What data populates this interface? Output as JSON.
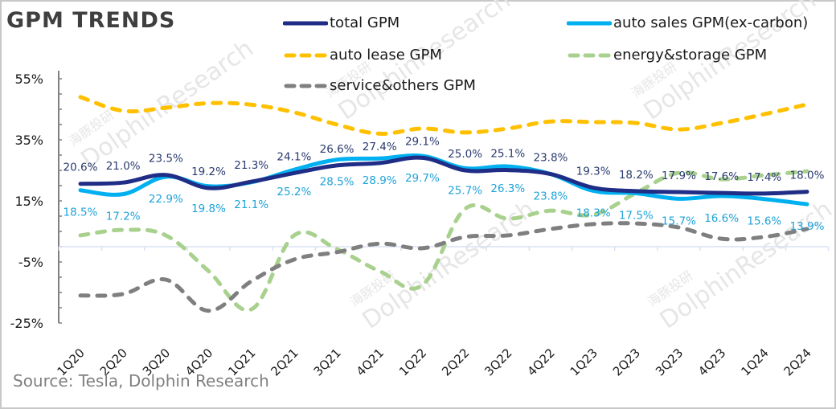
{
  "title": "GPM TRENDS",
  "source": "Source: Tesla,  Dolphin Research",
  "watermark": {
    "en": "DolphinResearch",
    "cn": "海豚投研"
  },
  "chart_data": {
    "type": "line",
    "title": "GPM TRENDS",
    "xlabel": "",
    "ylabel": "",
    "ylim": [
      -25,
      55
    ],
    "yticks": [
      55,
      35,
      15,
      -5,
      -25
    ],
    "ytick_labels": [
      "55%",
      "35%",
      "15%",
      "-5%",
      "-25%"
    ],
    "grid": false,
    "legend_position": "top",
    "categories": [
      "1Q20",
      "2Q20",
      "3Q20",
      "4Q20",
      "1Q21",
      "2Q21",
      "3Q21",
      "4Q21",
      "1Q22",
      "2Q22",
      "3Q22",
      "4Q22",
      "1Q23",
      "2Q23",
      "3Q23",
      "4Q23",
      "1Q24",
      "2Q24"
    ],
    "series": [
      {
        "name": "total GPM",
        "color": "#1f2d86",
        "style": "solid",
        "label_position": "above",
        "label_color": "#2a3a6e",
        "values": [
          20.6,
          21.0,
          23.5,
          19.2,
          21.3,
          24.1,
          26.6,
          27.4,
          29.1,
          25.0,
          25.1,
          23.8,
          19.3,
          18.2,
          17.9,
          17.6,
          17.4,
          18.0
        ],
        "labels": [
          "20.6%",
          "21.0%",
          "23.5%",
          "19.2%",
          "21.3%",
          "24.1%",
          "26.6%",
          "27.4%",
          "29.1%",
          "25.0%",
          "25.1%",
          "23.8%",
          "19.3%",
          "18.2%",
          "17.9%",
          "17.6%",
          "17.4%",
          "18.0%"
        ]
      },
      {
        "name": "auto sales GPM(ex-carbon)",
        "color": "#00b0f0",
        "style": "solid",
        "label_position": "below",
        "label_color": "#1fa3d8",
        "values": [
          18.5,
          17.2,
          22.9,
          19.8,
          21.1,
          25.2,
          28.5,
          28.9,
          29.7,
          25.7,
          26.3,
          23.8,
          18.3,
          17.5,
          15.7,
          16.6,
          15.6,
          13.9
        ],
        "labels": [
          "18.5%",
          "17.2%",
          "22.9%",
          "19.8%",
          "21.1%",
          "25.2%",
          "28.5%",
          "28.9%",
          "29.7%",
          "25.7%",
          "26.3%",
          "23.8%",
          "18.3%",
          "17.5%",
          "15.7%",
          "16.6%",
          "15.6%",
          "13.9%"
        ]
      },
      {
        "name": "auto lease GPM",
        "color": "#ffc000",
        "style": "dashed",
        "values": [
          49.0,
          44.5,
          45.5,
          47.0,
          46.5,
          44.0,
          40.0,
          37.0,
          38.7,
          37.4,
          38.7,
          41.0,
          40.8,
          40.5,
          38.4,
          40.5,
          43.4,
          46.6
        ]
      },
      {
        "name": "energy&storage GPM",
        "color": "#a9d18e",
        "style": "dashed",
        "values": [
          3.7,
          5.5,
          3.7,
          -8.0,
          -20.5,
          3.7,
          -0.8,
          -8.0,
          -12.6,
          12.4,
          9.2,
          11.8,
          10.5,
          17.6,
          24.2,
          22.1,
          23.4,
          24.7
        ]
      },
      {
        "name": "service&others GPM",
        "color": "#7f7f7f",
        "style": "dashed",
        "values": [
          -16.0,
          -15.5,
          -10.8,
          -21.0,
          -11.3,
          -4.2,
          -1.8,
          1.0,
          -0.5,
          3.2,
          3.7,
          5.8,
          7.4,
          7.6,
          6.3,
          2.6,
          3.2,
          5.8
        ]
      }
    ]
  }
}
